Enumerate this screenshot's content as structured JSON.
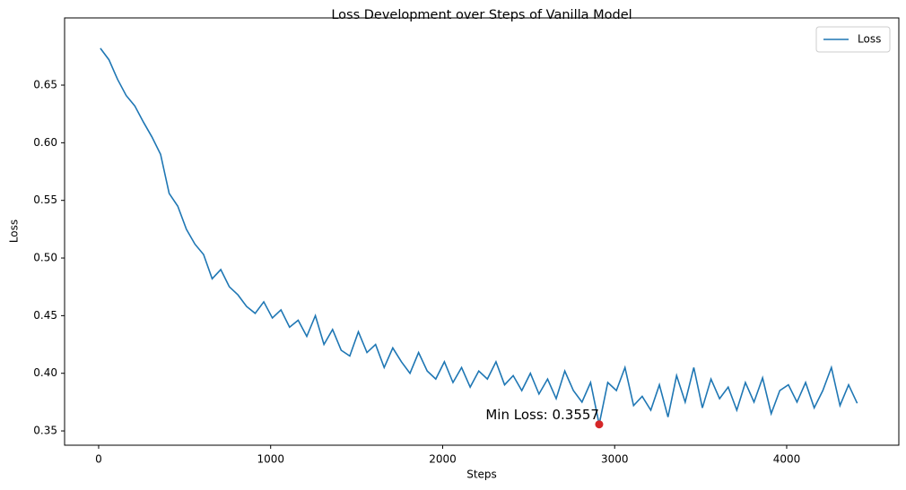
{
  "chart_data": {
    "type": "line",
    "title": "Loss Development over Steps of Vanilla Model",
    "x_label": "Steps",
    "y_label": "Loss",
    "x": [
      10,
      60,
      110,
      160,
      210,
      260,
      310,
      360,
      410,
      460,
      510,
      560,
      610,
      660,
      710,
      760,
      810,
      860,
      910,
      960,
      1010,
      1060,
      1110,
      1160,
      1210,
      1260,
      1310,
      1360,
      1410,
      1460,
      1510,
      1560,
      1610,
      1660,
      1710,
      1760,
      1810,
      1860,
      1910,
      1960,
      2010,
      2060,
      2110,
      2160,
      2210,
      2260,
      2310,
      2360,
      2410,
      2460,
      2510,
      2560,
      2610,
      2660,
      2710,
      2760,
      2810,
      2860,
      2910,
      2960,
      3010,
      3060,
      3110,
      3160,
      3210,
      3260,
      3310,
      3360,
      3410,
      3460,
      3510,
      3560,
      3610,
      3660,
      3710,
      3760,
      3810,
      3860,
      3910,
      3960,
      4010,
      4060,
      4110,
      4160,
      4210,
      4260,
      4310,
      4360,
      4410
    ],
    "series": [
      {
        "name": "Loss",
        "color": "#1f77b4",
        "values": [
          0.682,
          0.672,
          0.655,
          0.641,
          0.632,
          0.618,
          0.605,
          0.59,
          0.556,
          0.545,
          0.525,
          0.512,
          0.503,
          0.482,
          0.49,
          0.475,
          0.468,
          0.458,
          0.452,
          0.462,
          0.448,
          0.455,
          0.44,
          0.446,
          0.432,
          0.45,
          0.425,
          0.438,
          0.42,
          0.415,
          0.436,
          0.418,
          0.425,
          0.405,
          0.422,
          0.41,
          0.4,
          0.418,
          0.402,
          0.395,
          0.41,
          0.392,
          0.405,
          0.388,
          0.402,
          0.395,
          0.41,
          0.39,
          0.398,
          0.385,
          0.4,
          0.382,
          0.395,
          0.378,
          0.402,
          0.385,
          0.375,
          0.392,
          0.3557,
          0.392,
          0.385,
          0.405,
          0.372,
          0.38,
          0.368,
          0.39,
          0.362,
          0.398,
          0.375,
          0.405,
          0.37,
          0.395,
          0.378,
          0.388,
          0.368,
          0.392,
          0.375,
          0.396,
          0.365,
          0.385,
          0.39,
          0.375,
          0.392,
          0.37,
          0.385,
          0.405,
          0.372,
          0.39,
          0.374
        ]
      }
    ],
    "min_point": {
      "x": 2910,
      "y": 0.3557,
      "color": "#d62728",
      "label": "Min Loss: 0.3557"
    },
    "xlim": [
      -198,
      4652
    ],
    "ylim": [
      0.3376,
      0.7083
    ],
    "xticks": [
      0,
      1000,
      2000,
      3000,
      4000
    ],
    "yticks": [
      0.35,
      {
        "value": 0.4,
        "label": "0.40"
      },
      0.45,
      {
        "value": 0.5,
        "label": "0.50"
      },
      0.55,
      {
        "value": 0.6,
        "label": "0.60"
      },
      0.65
    ],
    "grid": false,
    "legend_position": "upper-right"
  }
}
